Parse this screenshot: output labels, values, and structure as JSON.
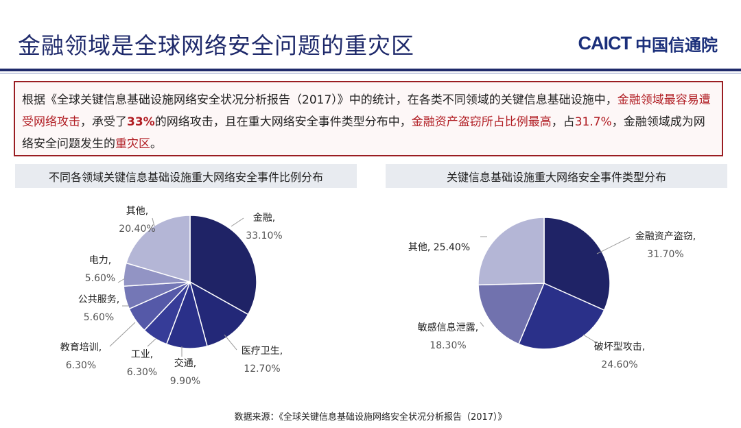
{
  "page_title": "金融领域是全球网络安全问题的重灾区",
  "logo": {
    "en": "CAICT",
    "cn": "中国信通院"
  },
  "summary": {
    "p1": "根据《全球关键信息基础设施网络安全状况分析报告（2017）》中的统计，在各类不同领域的关键信息基础设施中，",
    "p2": "金融领域最容易遭受网络攻击",
    "p3": "，承受了",
    "p4": "33%",
    "p5": "的网络攻击，且在重大网络安全事件类型分布中，",
    "p6": "金融资产盗窃所占比例最高",
    "p7": "，占",
    "p8": "31.7%",
    "p9": "，金融领域成为网络安全问题发生的",
    "p10": "重灾区",
    "p11": "。"
  },
  "chart_data": [
    {
      "type": "pie",
      "title": "不同各领域关键信息基础设施重大网络安全事件比例分布",
      "slices": [
        {
          "label": "金融,",
          "value": 33.1,
          "value_label": "33.10%",
          "color": "#1f2366"
        },
        {
          "label": "医疗卫生,",
          "value": 12.7,
          "value_label": "12.70%",
          "color": "#232878"
        },
        {
          "label": "交通,",
          "value": 9.9,
          "value_label": "9.90%",
          "color": "#2a3089"
        },
        {
          "label": "工业,",
          "value": 6.3,
          "value_label": "6.30%",
          "color": "#363c98"
        },
        {
          "label": "教育培训,",
          "value": 6.3,
          "value_label": "6.30%",
          "color": "#5559a8"
        },
        {
          "label": "公共服务,",
          "value": 5.6,
          "value_label": "5.60%",
          "color": "#7477b6"
        },
        {
          "label": "电力,",
          "value": 5.6,
          "value_label": "5.60%",
          "color": "#9294c4"
        },
        {
          "label": "其他,",
          "value": 20.4,
          "value_label": "20.40%",
          "color": "#b4b6d6"
        }
      ]
    },
    {
      "type": "pie",
      "title": "关键信息基础设施重大网络安全事件类型分布",
      "slices": [
        {
          "label": "金融资产盗窃,",
          "value": 31.7,
          "value_label": "31.70%",
          "color": "#1f2366"
        },
        {
          "label": "破坏型攻击,",
          "value": 24.6,
          "value_label": "24.60%",
          "color": "#2a3089"
        },
        {
          "label": "敏感信息泄露,",
          "value": 18.3,
          "value_label": "18.30%",
          "color": "#7172ae"
        },
        {
          "label": "其他,",
          "value": 25.4,
          "value_label": "25.40%",
          "color": "#b4b6d6"
        }
      ]
    }
  ],
  "source": "数据来源：《全球关键信息基础设施网络安全状况分析报告（2017）》"
}
